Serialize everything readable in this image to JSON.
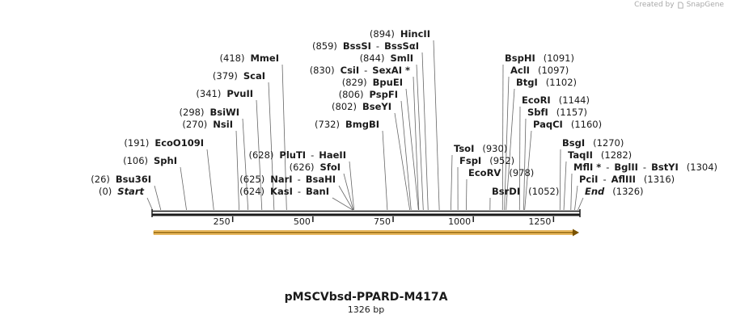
{
  "credit": {
    "prefix": "Created by",
    "brand": "SnapGene"
  },
  "plasmid": {
    "name": "pMSCVbsd-PPARD-M417A",
    "length_label": "1326 bp",
    "length": 1326
  },
  "colors": {
    "feature_fill": "#f3c060",
    "feature_stroke": "#c98a10",
    "feature_arrow": "#7a5200",
    "backbone": "#1a1a1a",
    "label_line": "#666666"
  },
  "axis": {
    "ticks": [
      250,
      500,
      750,
      1000,
      1250
    ]
  },
  "sites": [
    {
      "pos": 894,
      "items": [
        {
          "text": "(894)",
          "type": "pos"
        },
        {
          "text": "HincII",
          "type": "enz"
        }
      ]
    },
    {
      "pos": 859,
      "items": [
        {
          "text": "(859)",
          "type": "pos"
        },
        {
          "text": "BssSI",
          "type": "enz"
        },
        {
          "text": "-",
          "type": "sep"
        },
        {
          "text": "BssSαI",
          "type": "enz"
        }
      ]
    },
    {
      "pos": 844,
      "items": [
        {
          "text": "(844)",
          "type": "pos"
        },
        {
          "text": "SmlI",
          "type": "enz"
        }
      ]
    },
    {
      "pos": 830,
      "items": [
        {
          "text": "(830)",
          "type": "pos"
        },
        {
          "text": "CsiI",
          "type": "enz"
        },
        {
          "text": "-",
          "type": "sep"
        },
        {
          "text": "SexAI *",
          "type": "enz"
        }
      ]
    },
    {
      "pos": 829,
      "items": [
        {
          "text": "(829)",
          "type": "pos"
        },
        {
          "text": "BpuEI",
          "type": "enz"
        }
      ]
    },
    {
      "pos": 806,
      "items": [
        {
          "text": "(806)",
          "type": "pos"
        },
        {
          "text": "PspFI",
          "type": "enz"
        }
      ]
    },
    {
      "pos": 802,
      "items": [
        {
          "text": "(802)",
          "type": "pos"
        },
        {
          "text": "BseYI",
          "type": "enz"
        }
      ]
    },
    {
      "pos": 732,
      "items": [
        {
          "text": "(732)",
          "type": "pos"
        },
        {
          "text": "BmgBI",
          "type": "enz"
        }
      ]
    },
    {
      "pos": 418,
      "items": [
        {
          "text": "(418)",
          "type": "pos"
        },
        {
          "text": "MmeI",
          "type": "enz"
        }
      ]
    },
    {
      "pos": 379,
      "items": [
        {
          "text": "(379)",
          "type": "pos"
        },
        {
          "text": "ScaI",
          "type": "enz"
        }
      ]
    },
    {
      "pos": 341,
      "items": [
        {
          "text": "(341)",
          "type": "pos"
        },
        {
          "text": "PvuII",
          "type": "enz"
        }
      ]
    },
    {
      "pos": 298,
      "items": [
        {
          "text": "(298)",
          "type": "pos"
        },
        {
          "text": "BsiWI",
          "type": "enz"
        }
      ]
    },
    {
      "pos": 270,
      "items": [
        {
          "text": "(270)",
          "type": "pos"
        },
        {
          "text": "NsiI",
          "type": "enz"
        }
      ]
    },
    {
      "pos": 191,
      "items": [
        {
          "text": "(191)",
          "type": "pos"
        },
        {
          "text": "EcoO109I",
          "type": "enz"
        }
      ]
    },
    {
      "pos": 106,
      "items": [
        {
          "text": "(106)",
          "type": "pos"
        },
        {
          "text": "SphI",
          "type": "enz"
        }
      ]
    },
    {
      "pos": 26,
      "items": [
        {
          "text": "(26)",
          "type": "pos"
        },
        {
          "text": "Bsu36I",
          "type": "enz"
        }
      ]
    },
    {
      "pos": 0,
      "items": [
        {
          "text": "(0)",
          "type": "pos"
        },
        {
          "text": "Start",
          "type": "term"
        }
      ]
    },
    {
      "pos": 628,
      "items": [
        {
          "text": "(628)",
          "type": "pos"
        },
        {
          "text": "PluTI",
          "type": "enz"
        },
        {
          "text": "-",
          "type": "sep"
        },
        {
          "text": "HaeII",
          "type": "enz"
        }
      ]
    },
    {
      "pos": 626,
      "items": [
        {
          "text": "(626)",
          "type": "pos"
        },
        {
          "text": "SfoI",
          "type": "enz"
        }
      ]
    },
    {
      "pos": 625,
      "items": [
        {
          "text": "(625)",
          "type": "pos"
        },
        {
          "text": "NarI",
          "type": "enz"
        },
        {
          "text": "-",
          "type": "sep"
        },
        {
          "text": "BsaHI",
          "type": "enz"
        }
      ]
    },
    {
      "pos": 624,
      "items": [
        {
          "text": "(624)",
          "type": "pos"
        },
        {
          "text": "KasI",
          "type": "enz"
        },
        {
          "text": "-",
          "type": "sep"
        },
        {
          "text": "BanI",
          "type": "enz"
        }
      ]
    },
    {
      "pos": 930,
      "items": [
        {
          "text": "TsoI",
          "type": "enz"
        },
        {
          "text": "(930)",
          "type": "pos"
        }
      ]
    },
    {
      "pos": 952,
      "items": [
        {
          "text": "FspI",
          "type": "enz"
        },
        {
          "text": "(952)",
          "type": "pos"
        }
      ]
    },
    {
      "pos": 978,
      "items": [
        {
          "text": "EcoRV",
          "type": "enz"
        },
        {
          "text": "(978)",
          "type": "pos"
        }
      ]
    },
    {
      "pos": 1052,
      "items": [
        {
          "text": "BsrDI",
          "type": "enz"
        },
        {
          "text": "(1052)",
          "type": "pos"
        }
      ]
    },
    {
      "pos": 1091,
      "items": [
        {
          "text": "BspHI",
          "type": "enz"
        },
        {
          "text": "(1091)",
          "type": "pos"
        }
      ]
    },
    {
      "pos": 1097,
      "items": [
        {
          "text": "AclI",
          "type": "enz"
        },
        {
          "text": "(1097)",
          "type": "pos"
        }
      ]
    },
    {
      "pos": 1102,
      "items": [
        {
          "text": "BtgI",
          "type": "enz"
        },
        {
          "text": "(1102)",
          "type": "pos"
        }
      ]
    },
    {
      "pos": 1144,
      "items": [
        {
          "text": "EcoRI",
          "type": "enz"
        },
        {
          "text": "(1144)",
          "type": "pos"
        }
      ]
    },
    {
      "pos": 1157,
      "items": [
        {
          "text": "SbfI",
          "type": "enz"
        },
        {
          "text": "(1157)",
          "type": "pos"
        }
      ]
    },
    {
      "pos": 1160,
      "items": [
        {
          "text": "PaqCI",
          "type": "enz"
        },
        {
          "text": "(1160)",
          "type": "pos"
        }
      ]
    },
    {
      "pos": 1270,
      "items": [
        {
          "text": "BsgI",
          "type": "enz"
        },
        {
          "text": "(1270)",
          "type": "pos"
        }
      ]
    },
    {
      "pos": 1282,
      "items": [
        {
          "text": "TaqII",
          "type": "enz"
        },
        {
          "text": "(1282)",
          "type": "pos"
        }
      ]
    },
    {
      "pos": 1304,
      "items": [
        {
          "text": "MflI *",
          "type": "enz"
        },
        {
          "text": "-",
          "type": "sep"
        },
        {
          "text": "BglII",
          "type": "enz"
        },
        {
          "text": "-",
          "type": "sep"
        },
        {
          "text": "BstYI",
          "type": "enz"
        },
        {
          "text": "(1304)",
          "type": "pos"
        }
      ]
    },
    {
      "pos": 1316,
      "items": [
        {
          "text": "PciI",
          "type": "enz"
        },
        {
          "text": "-",
          "type": "sep"
        },
        {
          "text": "AflIII",
          "type": "enz"
        },
        {
          "text": "(1316)",
          "type": "pos"
        }
      ]
    },
    {
      "pos": 1326,
      "items": [
        {
          "text": "End",
          "type": "term"
        },
        {
          "text": "(1326)",
          "type": "pos"
        }
      ]
    }
  ]
}
